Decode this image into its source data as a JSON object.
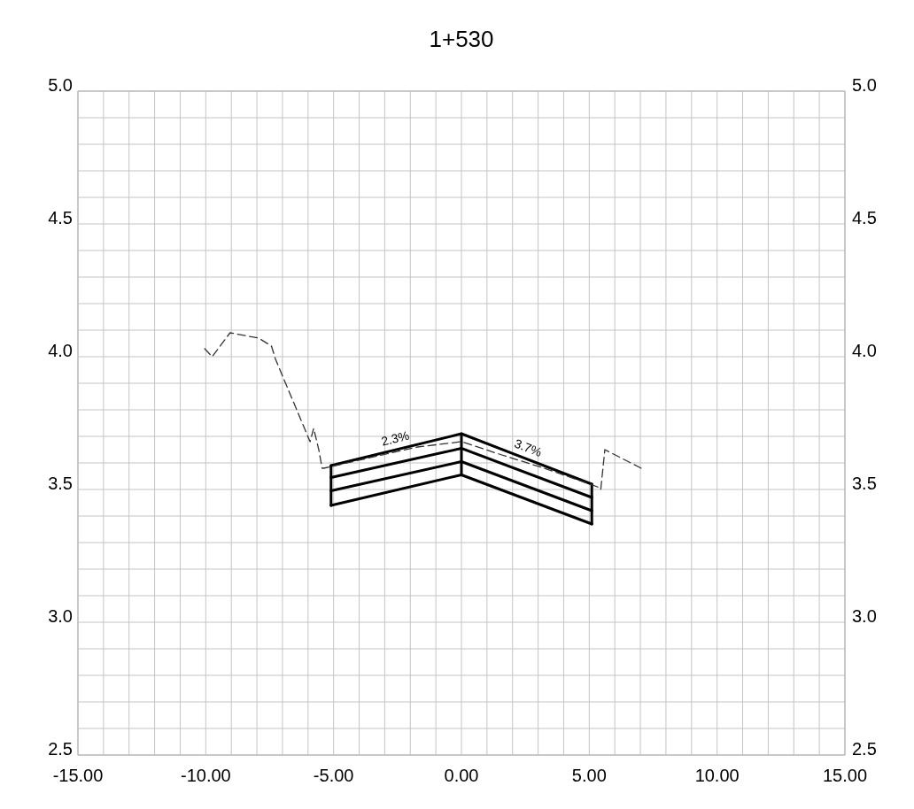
{
  "chart_data": {
    "type": "line",
    "title": "1+530",
    "grid": true,
    "marker": "none",
    "xlim": [
      -15,
      15
    ],
    "xticks": [
      {
        "value": -15,
        "label": "-15.00"
      },
      {
        "value": -14,
        "label": null
      },
      {
        "value": -13,
        "label": null
      },
      {
        "value": -12,
        "label": null
      },
      {
        "value": -11,
        "label": null
      },
      {
        "value": -10,
        "label": "-10.00"
      },
      {
        "value": -9,
        "label": null
      },
      {
        "value": -8,
        "label": null
      },
      {
        "value": -7,
        "label": null
      },
      {
        "value": -6,
        "label": null
      },
      {
        "value": -5,
        "label": "-5.00"
      },
      {
        "value": -4,
        "label": null
      },
      {
        "value": -3,
        "label": null
      },
      {
        "value": -2,
        "label": null
      },
      {
        "value": -1,
        "label": null
      },
      {
        "value": 0,
        "label": "0.00"
      },
      {
        "value": 1,
        "label": null
      },
      {
        "value": 2,
        "label": null
      },
      {
        "value": 3,
        "label": null
      },
      {
        "value": 4,
        "label": null
      },
      {
        "value": 5,
        "label": "5.00"
      },
      {
        "value": 6,
        "label": null
      },
      {
        "value": 7,
        "label": null
      },
      {
        "value": 8,
        "label": null
      },
      {
        "value": 9,
        "label": null
      },
      {
        "value": 10,
        "label": "10.00"
      },
      {
        "value": 11,
        "label": null
      },
      {
        "value": 12,
        "label": null
      },
      {
        "value": 13,
        "label": null
      },
      {
        "value": 14,
        "label": null
      },
      {
        "value": 15,
        "label": "15.00"
      }
    ],
    "ylim": [
      2.5,
      5
    ],
    "yticks": [
      2.5,
      {
        "value": 2.6,
        "label": null
      },
      {
        "value": 2.7,
        "label": null
      },
      {
        "value": 2.8,
        "label": null
      },
      {
        "value": 2.9,
        "label": null
      },
      {
        "value": 3,
        "label": "3.0"
      },
      {
        "value": 3.1,
        "label": null
      },
      {
        "value": 3.2,
        "label": null
      },
      {
        "value": 3.3,
        "label": null
      },
      {
        "value": 3.4,
        "label": null
      },
      3.5,
      {
        "value": 3.6,
        "label": null
      },
      {
        "value": 3.7,
        "label": null
      },
      {
        "value": 3.8,
        "label": null
      },
      {
        "value": 3.9,
        "label": null
      },
      {
        "value": 4,
        "label": "4.0"
      },
      {
        "value": 4.1,
        "label": null
      },
      {
        "value": 4.2,
        "label": null
      },
      {
        "value": 4.3,
        "label": null
      },
      {
        "value": 4.4,
        "label": null
      },
      4.5,
      {
        "value": 4.6,
        "label": null
      },
      {
        "value": 4.7,
        "label": null
      },
      {
        "value": 4.8,
        "label": null
      },
      {
        "value": 4.9,
        "label": null
      },
      {
        "value": 5,
        "label": "5.0"
      }
    ],
    "y2lim": [
      2.5,
      5
    ],
    "y2ticks": [
      2.5,
      {
        "value": 3,
        "label": "3.0"
      },
      3.5,
      {
        "value": 4,
        "label": "4.0"
      },
      4.5,
      {
        "value": 5,
        "label": "5.0"
      }
    ],
    "series": [
      {
        "color": "#000000",
        "line_style": "solid",
        "x": [
          -5.1,
          0,
          5.1
        ],
        "values": [
          3.59,
          3.71,
          3.52
        ]
      },
      {
        "color": "#000000",
        "line_style": "solid",
        "x": [
          -5.1,
          0,
          5.1
        ],
        "values": [
          3.545,
          3.655,
          3.47
        ]
      },
      {
        "color": "#000000",
        "line_style": "solid",
        "x": [
          -5.1,
          0,
          5.1
        ],
        "values": [
          3.495,
          3.605,
          3.42
        ]
      },
      {
        "color": "#000000",
        "line_style": "solid",
        "x": [
          -5.1,
          0,
          5.1
        ],
        "values": [
          3.44,
          3.555,
          3.37
        ]
      },
      {
        "color": "#000000",
        "line_style": "solid",
        "x": [
          -5.1,
          -5.1
        ],
        "values": [
          3.59,
          3.44
        ]
      },
      {
        "color": "#000000",
        "line_style": "solid",
        "x": [
          0,
          0
        ],
        "values": [
          3.71,
          3.555
        ]
      },
      {
        "color": "#000000",
        "line_style": "solid",
        "x": [
          5.1,
          5.1
        ],
        "values": [
          3.52,
          3.37
        ]
      },
      {
        "color": "#333333",
        "line_style": "dashed",
        "x": [
          -10.04,
          -9.75,
          -9.05,
          -7.93,
          -7.43,
          -7.27,
          -5.92,
          -5.78,
          -5.58,
          -5.45,
          -5.39,
          -1.72,
          0,
          1.58,
          3.24,
          5.32,
          5.45,
          5.61,
          7.03
        ],
        "values": [
          4.03,
          4.0,
          4.09,
          4.07,
          4.04,
          3.99,
          3.68,
          3.73,
          3.65,
          3.58,
          3.58,
          3.66,
          3.68,
          3.63,
          3.58,
          3.51,
          3.5,
          3.65,
          3.58
        ]
      }
    ],
    "annotations": [
      "2.3%",
      "3.7%"
    ]
  }
}
